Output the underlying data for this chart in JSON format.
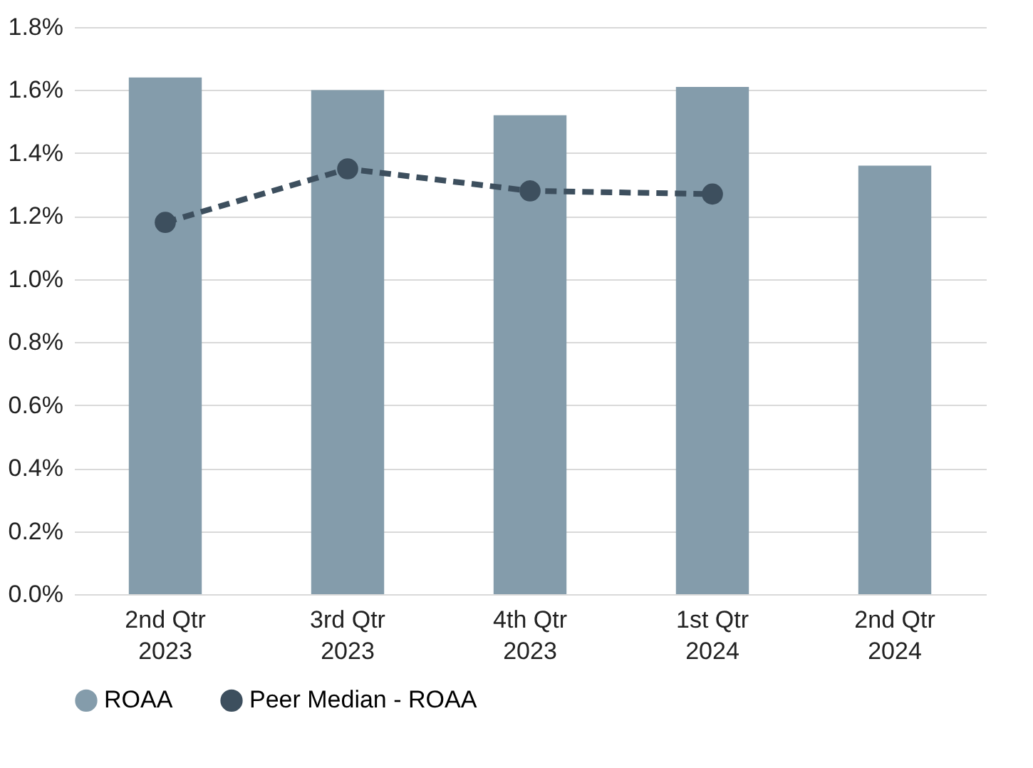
{
  "chart_data": {
    "type": "bar",
    "categories": [
      "2nd Qtr\n2023",
      "3rd Qtr\n2023",
      "4th Qtr\n2023",
      "1st Qtr\n2024",
      "2nd Qtr\n2024"
    ],
    "series": [
      {
        "name": "ROAA",
        "color": "#849cab",
        "values": [
          1.64,
          1.6,
          1.52,
          1.61,
          1.36
        ]
      },
      {
        "name": "Peer Median - ROAA",
        "type": "line",
        "color": "#3d4f5e",
        "line_style": "dashed",
        "marker": "circle",
        "values": [
          1.18,
          1.35,
          1.28,
          1.27,
          null
        ]
      }
    ],
    "ylim": [
      0,
      1.8
    ],
    "yticks": [
      {
        "value": 0,
        "label": "0.0%"
      },
      {
        "value": 0.2,
        "label": "0.2%"
      },
      {
        "value": 0.4,
        "label": "0.4%"
      },
      {
        "value": 0.6,
        "label": "0.6%"
      },
      {
        "value": 0.8,
        "label": "0.8%"
      },
      {
        "value": 1.0,
        "label": "1.0%"
      },
      {
        "value": 1.2,
        "label": "1.2%"
      },
      {
        "value": 1.4,
        "label": "1.4%"
      },
      {
        "value": 1.6,
        "label": "1.6%"
      },
      {
        "value": 1.8,
        "label": "1.8%"
      }
    ],
    "grid": "y",
    "legend": "bottom"
  }
}
